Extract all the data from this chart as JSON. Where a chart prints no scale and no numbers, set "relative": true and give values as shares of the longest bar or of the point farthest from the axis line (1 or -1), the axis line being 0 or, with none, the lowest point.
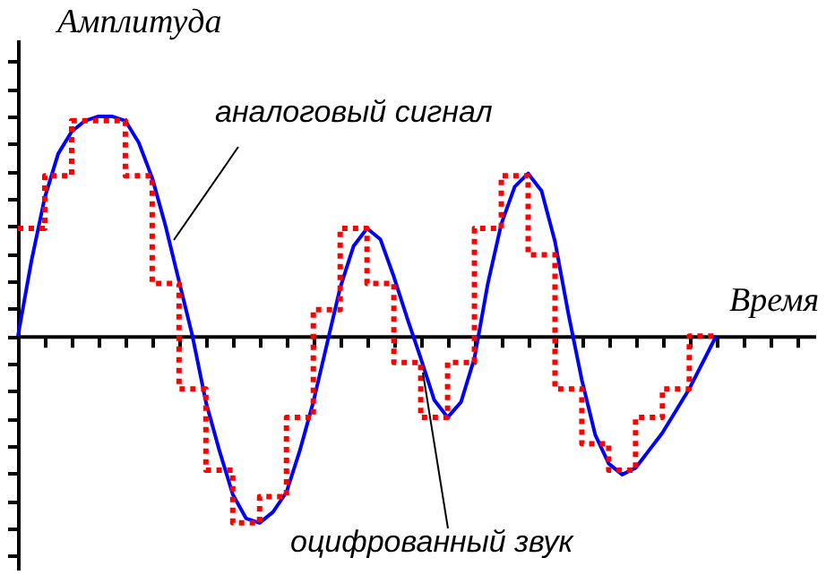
{
  "chart_data": {
    "type": "line",
    "relative": true,
    "xlabel": "Время",
    "ylabel": "Амплитуда",
    "categories": [
      null,
      null,
      null,
      null,
      null,
      null,
      null,
      null,
      null,
      null,
      null,
      null,
      null,
      null,
      null,
      null,
      null,
      null,
      null,
      null,
      null,
      null,
      null,
      null,
      null,
      null,
      null,
      null,
      null,
      null,
      null,
      null,
      null,
      null,
      null,
      null,
      null,
      null,
      null,
      null,
      null,
      null,
      null,
      null,
      null,
      null,
      null,
      null,
      null,
      null,
      null,
      null,
      null
    ],
    "tick_labels": false,
    "grid": false,
    "marker": "none",
    "series": [
      {
        "type": "line",
        "color": "#0000ff",
        "line_style": "solid",
        "values": [
          0,
          0.34,
          0.63,
          0.83,
          0.93,
          0.98,
          1,
          1,
          0.98,
          0.88,
          0.72,
          0.5,
          0.25,
          0,
          -0.3,
          -0.52,
          -0.72,
          -0.83,
          -0.85,
          -0.8,
          -0.71,
          -0.52,
          -0.3,
          -0.04,
          0.22,
          0.41,
          0.49,
          0.44,
          0.27,
          0.08,
          -0.1,
          -0.29,
          -0.37,
          -0.3,
          -0.1,
          0.24,
          0.51,
          0.68,
          0.74,
          0.66,
          0.43,
          0.1,
          -0.2,
          -0.45,
          -0.58,
          -0.63,
          -0.6,
          -0.52,
          -0.44,
          -0.34,
          -0.24,
          -0.12,
          0
        ]
      },
      {
        "type": "step",
        "color": "#ff0000",
        "line_style": "dotted",
        "values": [
          0.49,
          0.49,
          0.73,
          0.73,
          0.98,
          0.98,
          0.98,
          0.98,
          0.73,
          0.73,
          0.24,
          0.24,
          -0.24,
          -0.24,
          -0.61,
          -0.61,
          -0.85,
          -0.85,
          -0.73,
          -0.73,
          -0.37,
          -0.37,
          0.12,
          0.12,
          0.49,
          0.49,
          0.24,
          0.24,
          -0.12,
          -0.12,
          -0.37,
          -0.37,
          -0.12,
          -0.12,
          0.49,
          0.49,
          0.73,
          0.73,
          0.37,
          0.37,
          -0.24,
          -0.24,
          -0.49,
          -0.49,
          -0.61,
          -0.61,
          -0.37,
          -0.37,
          -0.24,
          -0.24,
          0,
          0,
          0
        ]
      }
    ],
    "annotations": [
      "аналоговый сигнал",
      "оцифрованный звук"
    ]
  }
}
